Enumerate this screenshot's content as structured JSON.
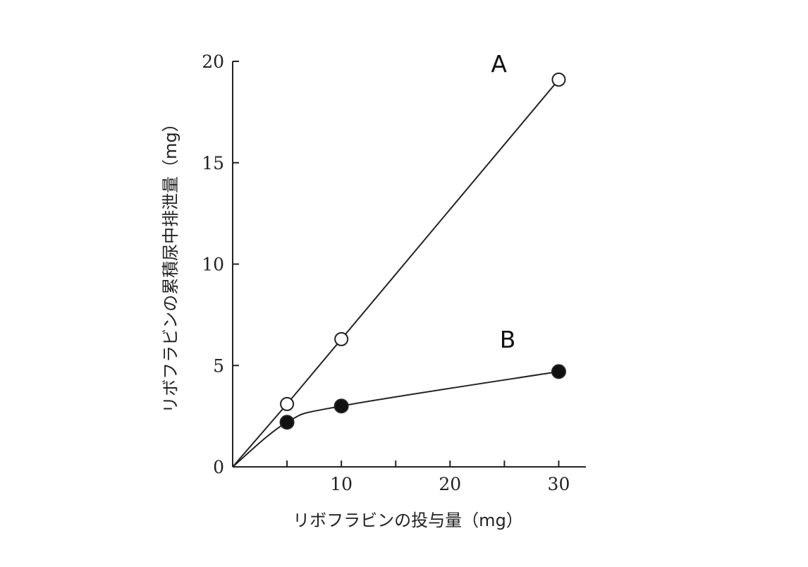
{
  "chart_data": {
    "type": "line",
    "title": "",
    "xlabel": "リボフラビンの投与量（mg）",
    "ylabel": "リボフラビンの累積尿中排泄量（mg）",
    "xlim": [
      0,
      32.5
    ],
    "ylim": [
      0,
      20
    ],
    "x_ticks": [
      5,
      10,
      15,
      20,
      25,
      30
    ],
    "x_tick_labels": [
      {
        "value": 10,
        "label": "10"
      },
      {
        "value": 20,
        "label": "20"
      },
      {
        "value": 30,
        "label": "30"
      }
    ],
    "y_ticks": [
      0,
      5,
      10,
      15,
      20
    ],
    "y_tick_labels": [
      {
        "value": 0,
        "label": "0"
      },
      {
        "value": 5,
        "label": "5"
      },
      {
        "value": 10,
        "label": "10"
      },
      {
        "value": 15,
        "label": "15"
      },
      {
        "value": 20,
        "label": "20"
      }
    ],
    "grid": false,
    "legend": "none",
    "series": [
      {
        "name": "A",
        "marker": "open-circle",
        "line_shape": "straight",
        "x": [
          0,
          5,
          10,
          30
        ],
        "y": [
          0,
          3.1,
          6.3,
          19.1
        ],
        "label_at": {
          "x": 24.5,
          "y": 19.9
        }
      },
      {
        "name": "B",
        "marker": "filled-circle",
        "line_shape": "smooth",
        "x": [
          0,
          5,
          10,
          30
        ],
        "y": [
          0,
          2.2,
          3.0,
          4.7
        ],
        "label_at": {
          "x": 25.3,
          "y": 6.3
        }
      }
    ]
  }
}
